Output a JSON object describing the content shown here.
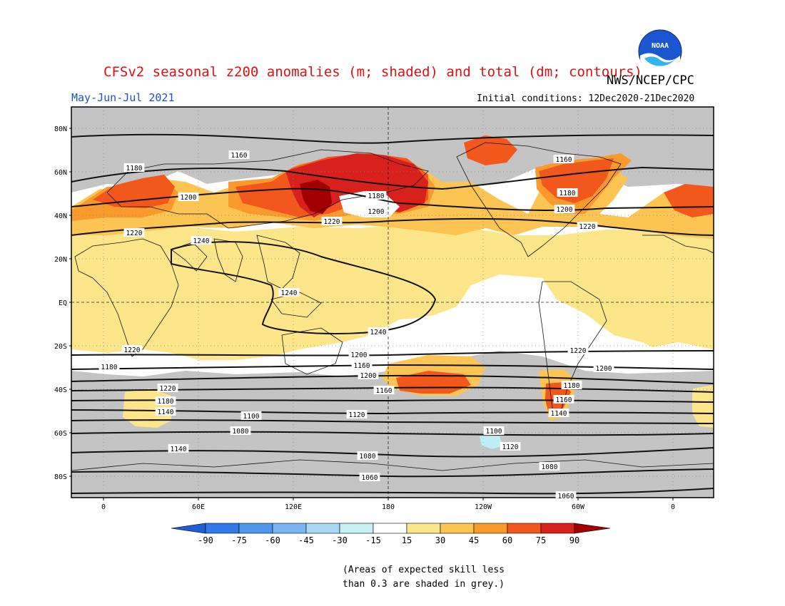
{
  "header": {
    "title": "CFSv2 seasonal z200 anomalies (m; shaded) and total (dm; contours)",
    "agency": "NWS/NCEP/CPC",
    "season": "May-Jun-Jul 2021",
    "initial_conditions": "Initial conditions: 12Dec2020-21Dec2020",
    "logo_text": "NOAA"
  },
  "map": {
    "lat_labels": [
      "80N",
      "60N",
      "40N",
      "20N",
      "EQ",
      "20S",
      "40S",
      "60S",
      "80S"
    ],
    "lon_labels": [
      "0",
      "60E",
      "120E",
      "180",
      "120W",
      "60W",
      "0"
    ],
    "contour_labels": [
      "1160",
      "1180",
      "1200",
      "1220",
      "1240",
      "1180",
      "1200",
      "1220",
      "1160",
      "1180",
      "1200",
      "1220",
      "1240",
      "1240",
      "1220",
      "1200",
      "1180",
      "1160",
      "1220",
      "1200",
      "1180",
      "1160",
      "1140",
      "1120",
      "1100",
      "1080",
      "1140",
      "1120",
      "1100",
      "1080",
      "1060",
      "1220",
      "1200",
      "1180",
      "1160",
      "1140",
      "1080",
      "1060"
    ],
    "colors": {
      "grey_low_skill": "#c4c4c4",
      "white": "#ffffff",
      "c15_30": "#fde58a",
      "c30_45": "#fcc453",
      "c45_60": "#fb9a2c",
      "c60_75": "#f2581c",
      "c75_90": "#d8201c",
      "c90": "#a00000",
      "neg_15_30": "#bceef4"
    }
  },
  "colorbar": {
    "labels": [
      "-90",
      "-75",
      "-60",
      "-45",
      "-30",
      "-15",
      "15",
      "30",
      "45",
      "60",
      "75",
      "90"
    ],
    "colors": [
      "#1e5fd6",
      "#2f7ae6",
      "#4f96ee",
      "#7ab6f4",
      "#a8d8f6",
      "#c8f0f4",
      "#ffffff",
      "#fde58a",
      "#fcc453",
      "#fb9a2c",
      "#f2581c",
      "#d8201c",
      "#a00000"
    ]
  },
  "footnote": "(Areas of expected skill less\nthan 0.3 are shaded in grey.)"
}
